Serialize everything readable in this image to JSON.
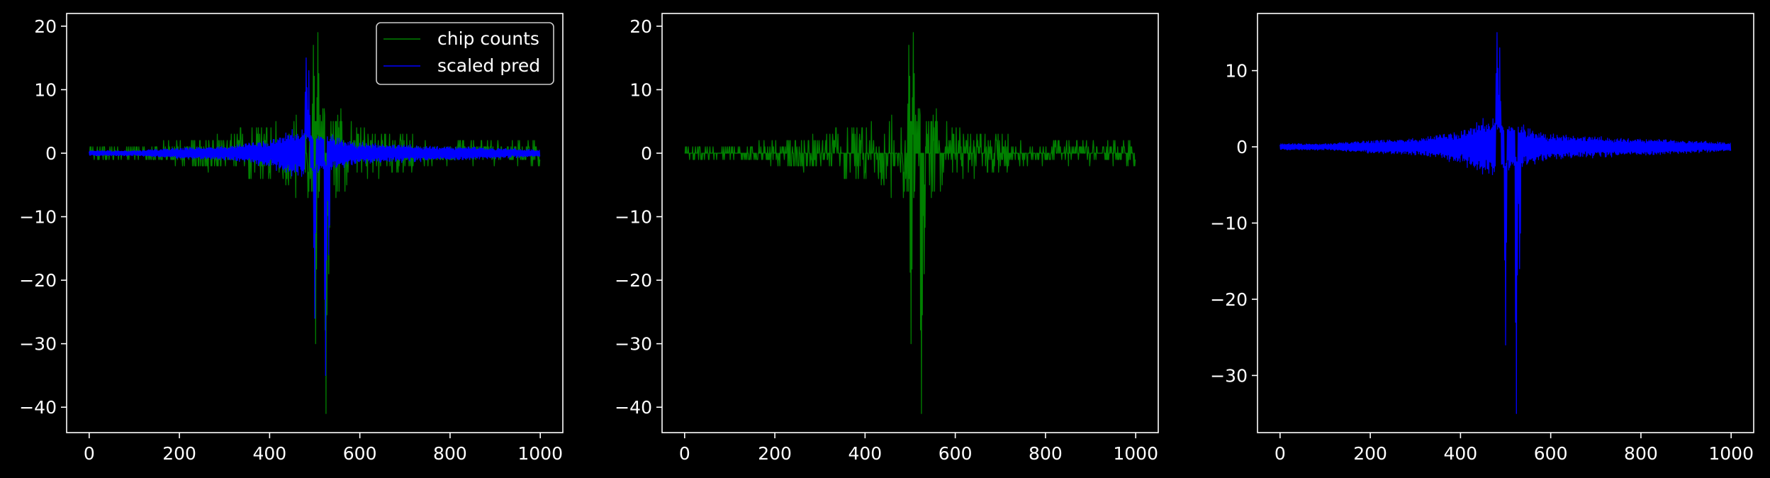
{
  "figure": {
    "background": "#000000",
    "foreground": "#ffffff"
  },
  "chart_data": [
    {
      "type": "line",
      "title": "",
      "xlabel": "",
      "ylabel": "",
      "xlim": [
        -50,
        1050
      ],
      "ylim": [
        -44,
        22
      ],
      "xticks": [
        0,
        200,
        400,
        600,
        800,
        1000
      ],
      "xtick_labels": [
        "0",
        "200",
        "400",
        "600",
        "800",
        "1000"
      ],
      "yticks": [
        -40,
        -30,
        -20,
        -10,
        0,
        10,
        20
      ],
      "ytick_labels": [
        "−40",
        "−30",
        "−20",
        "−10",
        "0",
        "10",
        "20"
      ],
      "grid": false,
      "legend": {
        "position": "upper right",
        "entries": [
          "chip counts",
          "scaled pred"
        ]
      },
      "series": [
        {
          "name": "chip counts",
          "color": "#008000",
          "n_points": 1000,
          "x_range": [
            0,
            999
          ],
          "y_range": [
            -41,
            19
          ],
          "extremes": [
            {
              "x": 497,
              "y": 17
            },
            {
              "x": 507,
              "y": 19
            },
            {
              "x": 502,
              "y": -30
            },
            {
              "x": 525,
              "y": -41
            },
            {
              "x": 531,
              "y": -19
            }
          ],
          "envelope": [
            {
              "x": 0,
              "y": 1
            },
            {
              "x": 100,
              "y": 1
            },
            {
              "x": 200,
              "y": 2
            },
            {
              "x": 300,
              "y": 3
            },
            {
              "x": 400,
              "y": 5
            },
            {
              "x": 450,
              "y": 7
            },
            {
              "x": 550,
              "y": 8
            },
            {
              "x": 600,
              "y": 4
            },
            {
              "x": 700,
              "y": 3
            },
            {
              "x": 800,
              "y": 2
            },
            {
              "x": 900,
              "y": 2
            },
            {
              "x": 999,
              "y": 2
            }
          ]
        },
        {
          "name": "scaled pred",
          "color": "#0000ff",
          "n_points": 1000,
          "x_range": [
            0,
            999
          ],
          "y_range": [
            -35,
            15
          ],
          "extremes": [
            {
              "x": 481,
              "y": 15
            },
            {
              "x": 487,
              "y": 13
            },
            {
              "x": 500,
              "y": -26
            },
            {
              "x": 524,
              "y": -35
            },
            {
              "x": 531,
              "y": -16
            }
          ],
          "envelope": [
            {
              "x": 0,
              "y": 0.4
            },
            {
              "x": 100,
              "y": 0.4
            },
            {
              "x": 200,
              "y": 0.8
            },
            {
              "x": 300,
              "y": 1
            },
            {
              "x": 400,
              "y": 2
            },
            {
              "x": 450,
              "y": 3.5
            },
            {
              "x": 550,
              "y": 2.5
            },
            {
              "x": 600,
              "y": 1.5
            },
            {
              "x": 700,
              "y": 1.3
            },
            {
              "x": 800,
              "y": 1
            },
            {
              "x": 900,
              "y": 0.8
            },
            {
              "x": 999,
              "y": 0.5
            }
          ]
        }
      ]
    },
    {
      "type": "line",
      "title": "",
      "xlabel": "",
      "ylabel": "",
      "xlim": [
        -50,
        1050
      ],
      "ylim": [
        -44,
        22
      ],
      "xticks": [
        0,
        200,
        400,
        600,
        800,
        1000
      ],
      "xtick_labels": [
        "0",
        "200",
        "400",
        "600",
        "800",
        "1000"
      ],
      "yticks": [
        -40,
        -30,
        -20,
        -10,
        0,
        10,
        20
      ],
      "ytick_labels": [
        "−40",
        "−30",
        "−20",
        "−10",
        "0",
        "10",
        "20"
      ],
      "grid": false,
      "series": [
        {
          "color": "#008000",
          "n_points": 1000,
          "x_range": [
            0,
            999
          ],
          "y_range": [
            -41,
            19
          ],
          "extremes": [
            {
              "x": 497,
              "y": 17
            },
            {
              "x": 507,
              "y": 19
            },
            {
              "x": 502,
              "y": -30
            },
            {
              "x": 525,
              "y": -41
            },
            {
              "x": 531,
              "y": -19
            }
          ],
          "envelope": [
            {
              "x": 0,
              "y": 1
            },
            {
              "x": 100,
              "y": 1
            },
            {
              "x": 200,
              "y": 2
            },
            {
              "x": 300,
              "y": 3
            },
            {
              "x": 400,
              "y": 5
            },
            {
              "x": 450,
              "y": 7
            },
            {
              "x": 550,
              "y": 8
            },
            {
              "x": 600,
              "y": 4
            },
            {
              "x": 700,
              "y": 3
            },
            {
              "x": 800,
              "y": 2
            },
            {
              "x": 900,
              "y": 2
            },
            {
              "x": 999,
              "y": 2
            }
          ]
        }
      ]
    },
    {
      "type": "line",
      "title": "",
      "xlabel": "",
      "ylabel": "",
      "xlim": [
        -50,
        1050
      ],
      "ylim": [
        -37.5,
        17.5
      ],
      "xticks": [
        0,
        200,
        400,
        600,
        800,
        1000
      ],
      "xtick_labels": [
        "0",
        "200",
        "400",
        "600",
        "800",
        "1000"
      ],
      "yticks": [
        -30,
        -20,
        -10,
        0,
        10
      ],
      "ytick_labels": [
        "−30",
        "−20",
        "−10",
        "0",
        "10"
      ],
      "grid": false,
      "series": [
        {
          "color": "#0000ff",
          "n_points": 1000,
          "x_range": [
            0,
            999
          ],
          "y_range": [
            -35,
            15
          ],
          "extremes": [
            {
              "x": 481,
              "y": 15
            },
            {
              "x": 487,
              "y": 13
            },
            {
              "x": 500,
              "y": -26
            },
            {
              "x": 524,
              "y": -35
            },
            {
              "x": 531,
              "y": -16
            }
          ],
          "envelope": [
            {
              "x": 0,
              "y": 0.4
            },
            {
              "x": 100,
              "y": 0.4
            },
            {
              "x": 200,
              "y": 0.8
            },
            {
              "x": 300,
              "y": 1
            },
            {
              "x": 400,
              "y": 2
            },
            {
              "x": 450,
              "y": 3.5
            },
            {
              "x": 550,
              "y": 2.5
            },
            {
              "x": 600,
              "y": 1.5
            },
            {
              "x": 700,
              "y": 1.3
            },
            {
              "x": 800,
              "y": 1
            },
            {
              "x": 900,
              "y": 0.8
            },
            {
              "x": 999,
              "y": 0.5
            }
          ]
        }
      ]
    }
  ]
}
